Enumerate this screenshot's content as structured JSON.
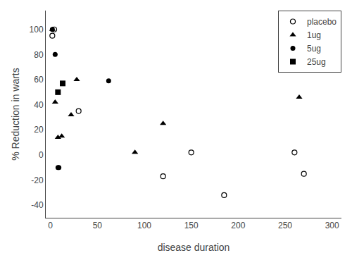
{
  "chart_data": {
    "type": "scatter",
    "x_label": "disease duration",
    "y_label": "% Reduction in warts",
    "series": [
      {
        "name": "placebo",
        "x": [
          2,
          4,
          30,
          120,
          150,
          185,
          260,
          270
        ],
        "values": [
          95,
          100,
          35,
          -17,
          2,
          -32,
          2,
          -15
        ],
        "marker": "circle-open",
        "color": "black"
      },
      {
        "name": "1ug",
        "x": [
          2,
          5,
          8,
          12,
          22,
          28,
          90,
          120,
          265
        ],
        "values": [
          100,
          42,
          14,
          15,
          32,
          60,
          2,
          25,
          46
        ],
        "marker": "triangle-up",
        "color": "black"
      },
      {
        "name": "5ug",
        "x": [
          2,
          5,
          8,
          9,
          62
        ],
        "values": [
          100,
          80,
          -10,
          -10,
          59
        ],
        "marker": "circle",
        "color": "black"
      },
      {
        "name": "25ug",
        "x": [
          8,
          13
        ],
        "values": [
          50,
          57
        ],
        "marker": "square",
        "color": "black"
      }
    ],
    "xlim": [
      -5,
      310
    ],
    "ylim": [
      -50,
      115
    ],
    "xticks": [
      0,
      50,
      100,
      150,
      200,
      250,
      300
    ],
    "yticks": [
      -40,
      -20,
      0,
      20,
      40,
      60,
      80,
      100
    ],
    "grid": false,
    "legend": "upper right"
  }
}
